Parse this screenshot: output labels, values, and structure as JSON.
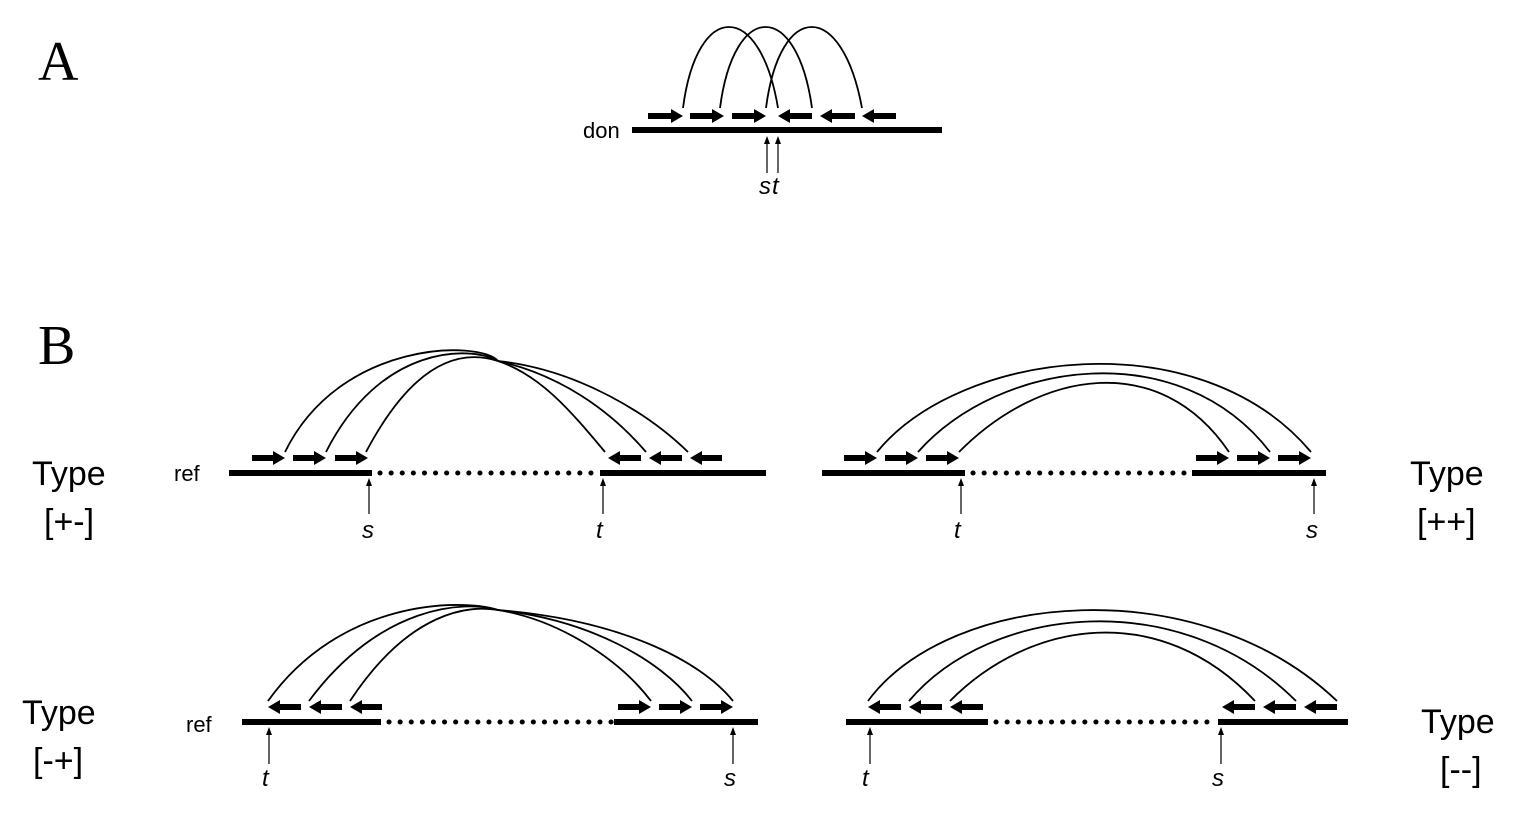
{
  "panels": {
    "A": {
      "letter": "A",
      "strand_label": "don",
      "s_label": "s",
      "t_label": "t"
    },
    "B": {
      "letter": "B",
      "ref_label": "ref",
      "types": {
        "pm": {
          "line1": "Type",
          "line2": "[+-]",
          "s_label": "s",
          "t_label": "t"
        },
        "pp": {
          "line1": "Type",
          "line2": "[++]",
          "s_label": "s",
          "t_label": "t"
        },
        "mp": {
          "line1": "Type",
          "line2": "[-+]",
          "s_label": "s",
          "t_label": "t"
        },
        "mm": {
          "line1": "Type",
          "line2": "[--]",
          "s_label": "s",
          "t_label": "t"
        }
      }
    }
  },
  "colors": {
    "ink": "#000000",
    "background": "#ffffff"
  }
}
